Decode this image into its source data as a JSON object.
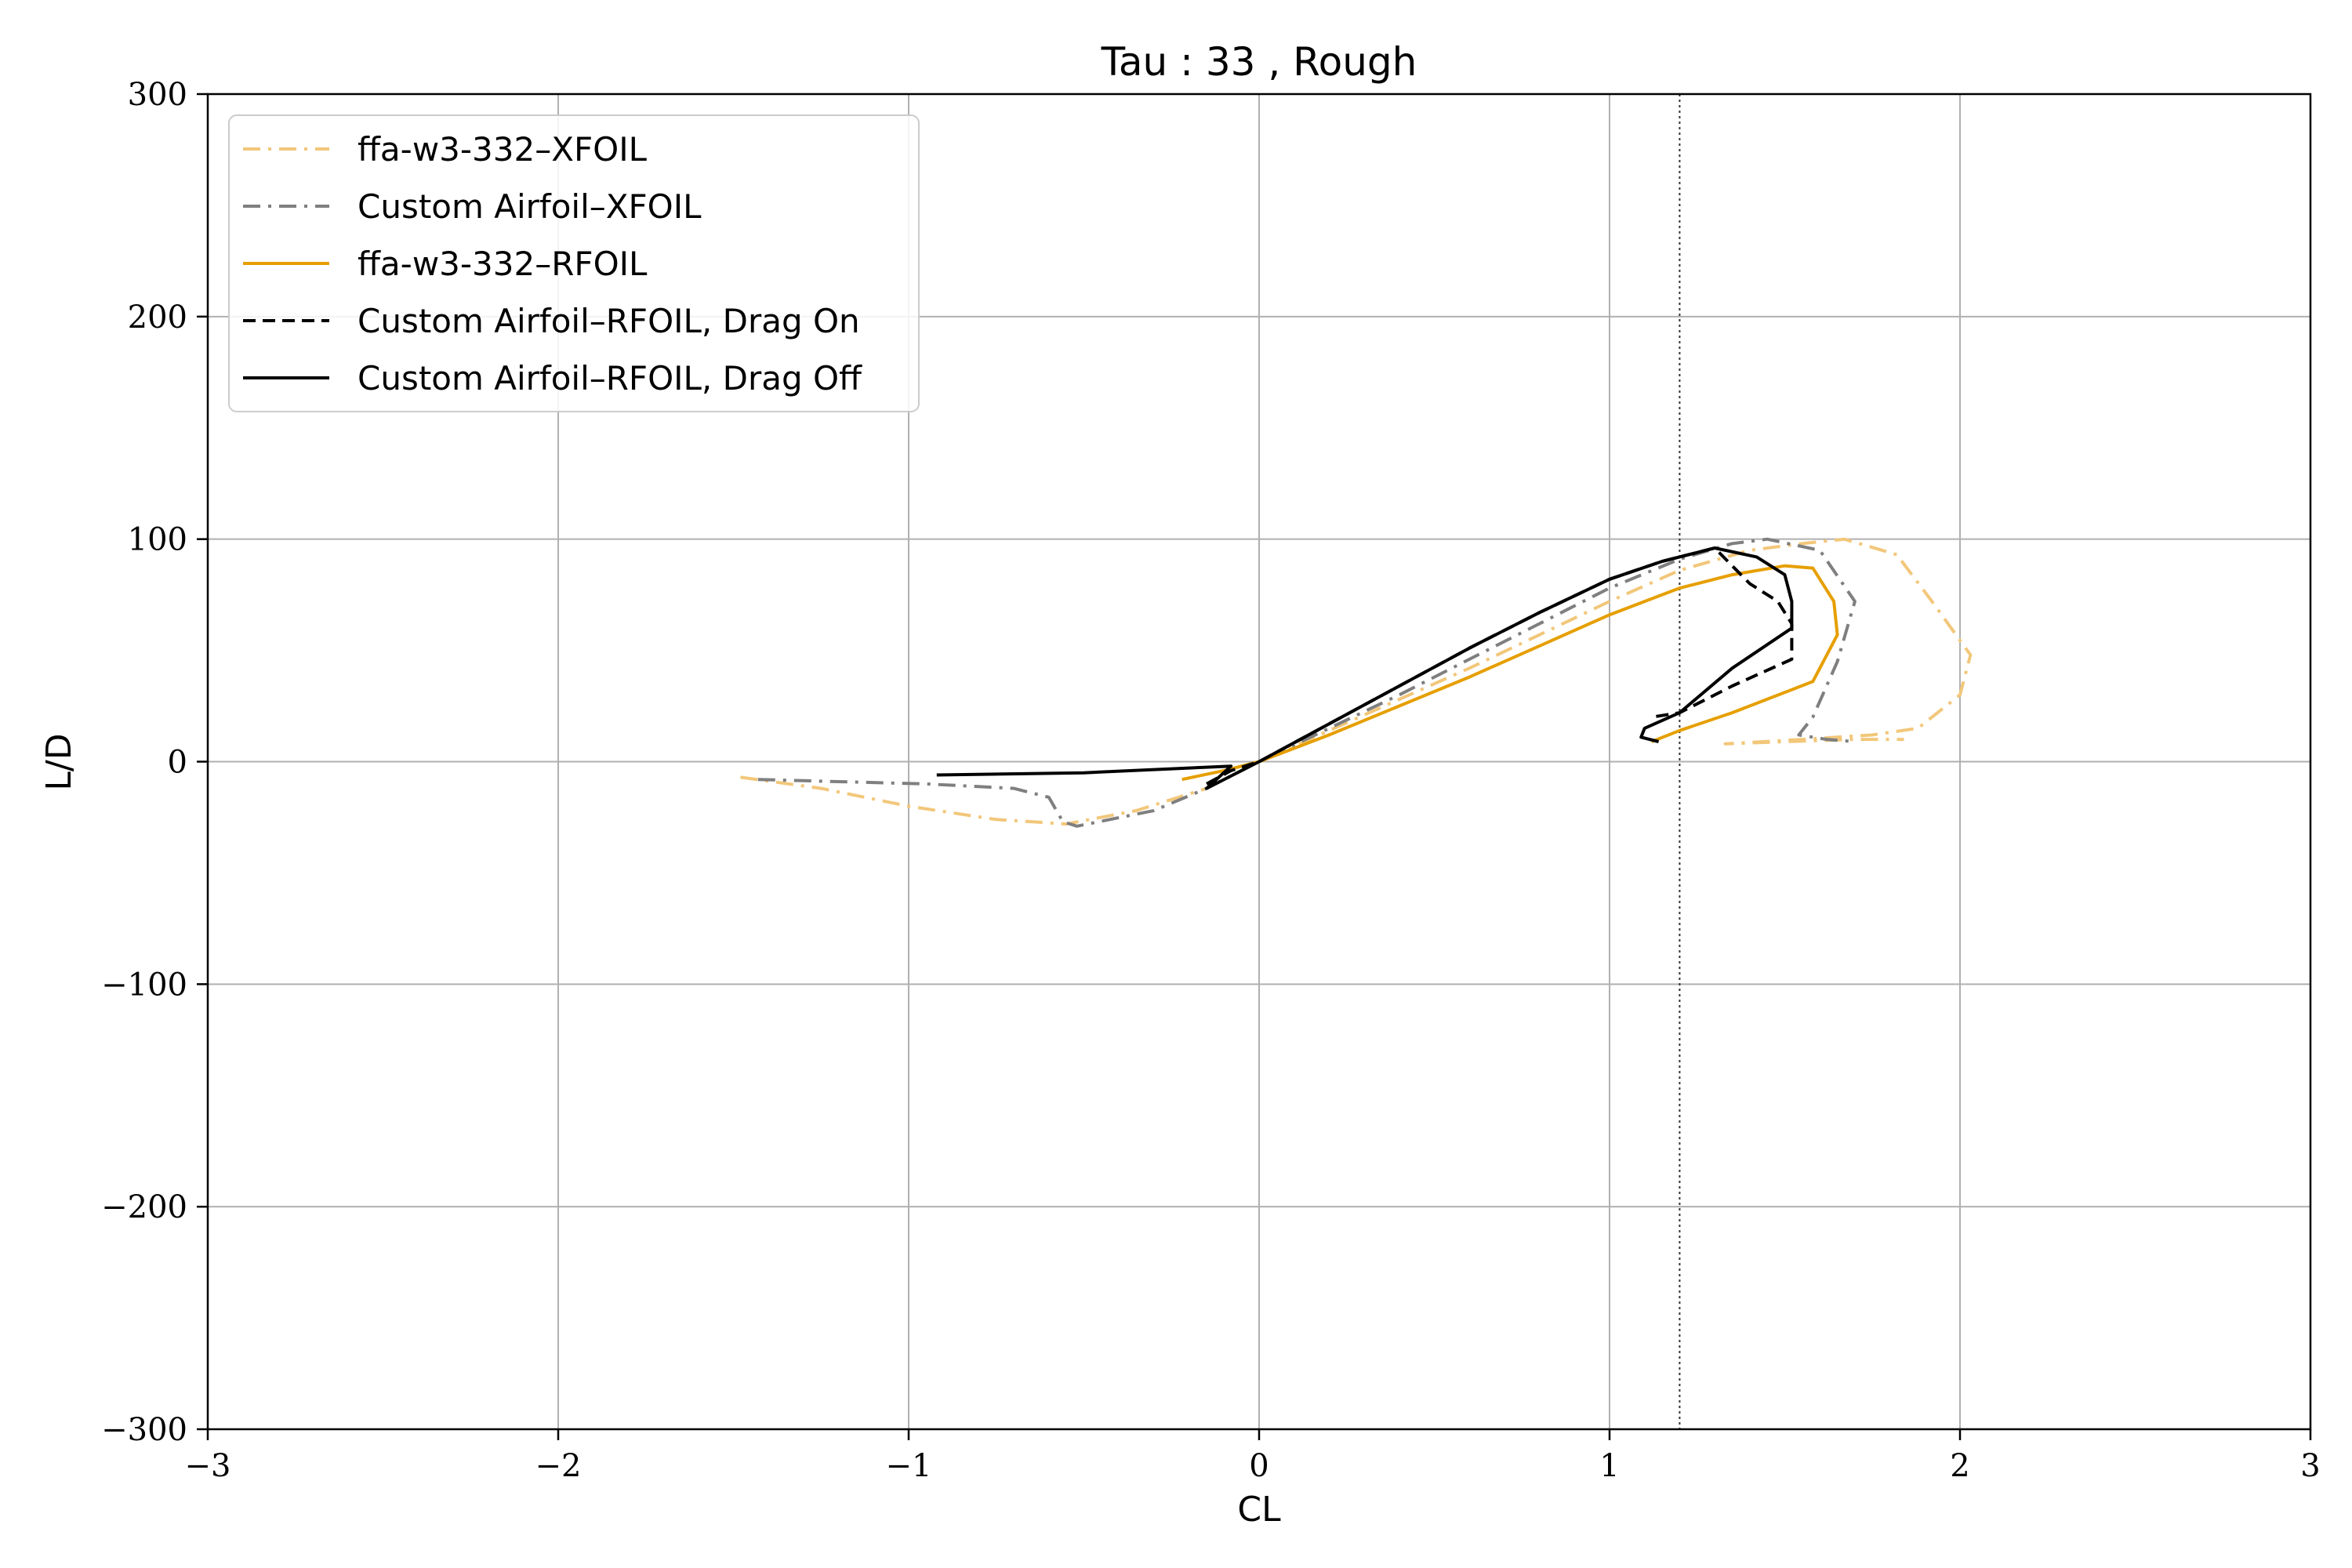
{
  "chart_data": {
    "type": "line",
    "title": "Tau : 33 , Rough",
    "xlabel": "CL",
    "ylabel": "L/D",
    "xlim": [
      -3,
      3
    ],
    "ylim": [
      -300,
      300
    ],
    "xticks": [
      -3,
      -2,
      -1,
      0,
      1,
      2,
      3
    ],
    "yticks": [
      -300,
      -200,
      -100,
      0,
      100,
      200,
      300
    ],
    "xtick_labels": [
      "−3",
      "−2",
      "−1",
      "0",
      "1",
      "2",
      "3"
    ],
    "ytick_labels": [
      "−300",
      "−200",
      "−100",
      "0",
      "100",
      "200",
      "300"
    ],
    "grid": true,
    "legend_position": "upper-left",
    "reference_line": {
      "orientation": "vertical",
      "x": 1.2,
      "style": "dotted",
      "color": "#333333"
    },
    "series": [
      {
        "name": "ffa-w3-332–XFOIL",
        "color": "#f2c77a",
        "style": "dashdot",
        "points": [
          [
            -1.48,
            -7
          ],
          [
            -1.25,
            -12
          ],
          [
            -1.0,
            -20
          ],
          [
            -0.75,
            -26
          ],
          [
            -0.55,
            -28
          ],
          [
            -0.35,
            -22
          ],
          [
            -0.15,
            -12
          ],
          [
            0.0,
            0
          ],
          [
            0.2,
            14
          ],
          [
            0.4,
            28
          ],
          [
            0.6,
            42
          ],
          [
            0.8,
            57
          ],
          [
            1.0,
            72
          ],
          [
            1.2,
            86
          ],
          [
            1.4,
            95
          ],
          [
            1.55,
            98
          ],
          [
            1.67,
            100
          ],
          [
            1.82,
            93
          ],
          [
            1.92,
            72
          ],
          [
            2.03,
            48
          ],
          [
            2.0,
            30
          ],
          [
            1.88,
            15
          ],
          [
            1.75,
            12
          ],
          [
            1.55,
            10
          ],
          [
            1.33,
            8
          ],
          [
            1.5,
            9
          ],
          [
            1.7,
            10
          ],
          [
            1.84,
            10
          ]
        ]
      },
      {
        "name": "Custom Airfoil–XFOIL",
        "color": "#7f7f7f",
        "style": "dashdot",
        "points": [
          [
            -1.43,
            -8
          ],
          [
            -1.2,
            -9
          ],
          [
            -0.95,
            -10
          ],
          [
            -0.7,
            -12
          ],
          [
            -0.6,
            -16
          ],
          [
            -0.56,
            -27
          ],
          [
            -0.52,
            -29
          ],
          [
            -0.3,
            -22
          ],
          [
            -0.15,
            -12
          ],
          [
            0.0,
            0
          ],
          [
            0.2,
            15
          ],
          [
            0.4,
            30
          ],
          [
            0.6,
            46
          ],
          [
            0.8,
            62
          ],
          [
            1.0,
            78
          ],
          [
            1.2,
            91
          ],
          [
            1.35,
            98
          ],
          [
            1.45,
            100
          ],
          [
            1.6,
            95
          ],
          [
            1.7,
            72
          ],
          [
            1.65,
            45
          ],
          [
            1.58,
            20
          ],
          [
            1.54,
            12
          ],
          [
            1.62,
            10
          ],
          [
            1.7,
            9
          ]
        ]
      },
      {
        "name": "ffa-w3-332–RFOIL",
        "color": "#e69f00",
        "style": "solid",
        "points": [
          [
            -0.22,
            -8
          ],
          [
            -0.1,
            -4
          ],
          [
            0.0,
            0
          ],
          [
            0.2,
            12
          ],
          [
            0.4,
            25
          ],
          [
            0.6,
            38
          ],
          [
            0.8,
            52
          ],
          [
            1.0,
            66
          ],
          [
            1.2,
            78
          ],
          [
            1.35,
            84
          ],
          [
            1.5,
            88
          ],
          [
            1.58,
            87
          ],
          [
            1.64,
            72
          ],
          [
            1.65,
            57
          ],
          [
            1.58,
            36
          ],
          [
            1.35,
            22
          ],
          [
            1.2,
            14
          ],
          [
            1.12,
            9
          ]
        ]
      },
      {
        "name": "Custom Airfoil–RFOIL, Drag On",
        "color": "#000000",
        "style": "dashed",
        "points": [
          [
            -0.15,
            -10
          ],
          [
            -0.08,
            -4
          ],
          [
            0.0,
            0
          ],
          [
            0.2,
            17
          ],
          [
            0.4,
            34
          ],
          [
            0.6,
            51
          ],
          [
            0.8,
            67
          ],
          [
            1.0,
            82
          ],
          [
            1.15,
            90
          ],
          [
            1.3,
            96
          ],
          [
            1.4,
            80
          ],
          [
            1.48,
            72
          ],
          [
            1.52,
            62
          ],
          [
            1.52,
            46
          ],
          [
            1.35,
            34
          ],
          [
            1.2,
            22
          ],
          [
            1.12,
            20
          ]
        ]
      },
      {
        "name": "Custom Airfoil–RFOIL, Drag Off",
        "color": "#000000",
        "style": "solid",
        "points": [
          [
            -0.92,
            -6
          ],
          [
            -0.5,
            -5
          ],
          [
            -0.08,
            -2
          ],
          [
            -0.15,
            -12
          ],
          [
            0.0,
            0
          ],
          [
            0.2,
            17
          ],
          [
            0.4,
            34
          ],
          [
            0.6,
            51
          ],
          [
            0.8,
            67
          ],
          [
            1.0,
            82
          ],
          [
            1.15,
            90
          ],
          [
            1.3,
            96
          ],
          [
            1.42,
            92
          ],
          [
            1.5,
            84
          ],
          [
            1.52,
            72
          ],
          [
            1.52,
            60
          ],
          [
            1.35,
            42
          ],
          [
            1.2,
            22
          ],
          [
            1.1,
            15
          ],
          [
            1.09,
            11
          ],
          [
            1.14,
            9
          ]
        ]
      }
    ]
  }
}
